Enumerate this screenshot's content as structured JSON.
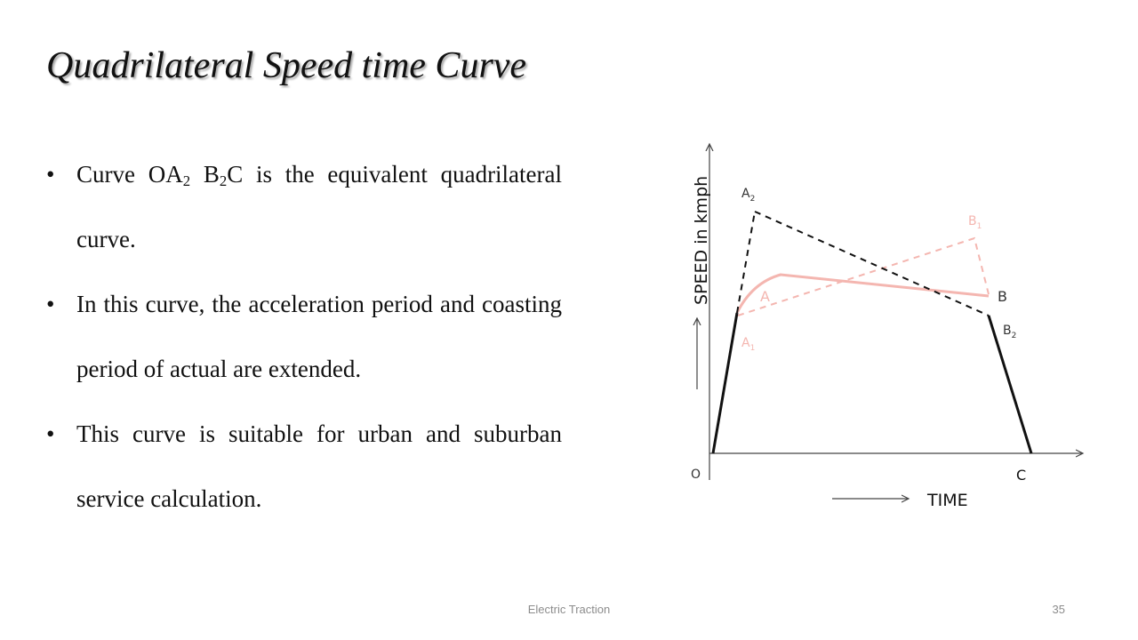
{
  "slide": {
    "title": "Quadrilateral Speed time Curve",
    "bullets": [
      {
        "parts": [
          {
            "text": "Curve OA"
          },
          {
            "sub": "2"
          },
          {
            "text": " B"
          },
          {
            "sub": "2"
          },
          {
            "text": "C is the equivalent quadrilateral curve."
          }
        ]
      },
      {
        "parts": [
          {
            "text": "In this curve, the acceleration period and coasting period of actual are extended."
          }
        ]
      },
      {
        "parts": [
          {
            "text": "This curve is suitable for urban and suburban service calculation."
          }
        ]
      }
    ]
  },
  "diagram": {
    "y_axis_label": "SPEED in kmph",
    "x_axis_label": "TIME",
    "points": {
      "O": "O",
      "C": "C",
      "A": "A",
      "B": "B",
      "A1": {
        "base": "A",
        "sub": "1"
      },
      "A2": {
        "base": "A",
        "sub": "2"
      },
      "B1": {
        "base": "B",
        "sub": "1"
      },
      "B2": {
        "base": "B",
        "sub": "2"
      }
    },
    "colors": {
      "equivalent_curve": "#111111",
      "actual_curve": "#f4b6b0",
      "dashed_alt_curve": "#f4b6b0",
      "axis": "#444444",
      "text": "#333333",
      "pink_label": "#f4b6b0"
    }
  },
  "footer": {
    "center": "Electric Traction",
    "page_number": "35"
  }
}
